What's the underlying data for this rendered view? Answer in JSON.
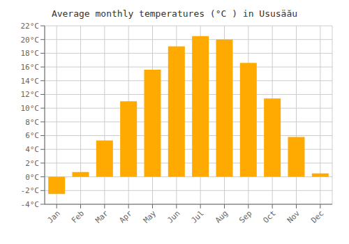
{
  "chart_data": {
    "type": "bar",
    "title": "Average monthly temperatures (°C ) in Ususäău",
    "categories": [
      "Jan",
      "Feb",
      "Mar",
      "Apr",
      "May",
      "Jun",
      "Jul",
      "Aug",
      "Sep",
      "Oct",
      "Nov",
      "Dec"
    ],
    "values": [
      -2.5,
      0.7,
      5.3,
      11.0,
      15.6,
      19.0,
      20.5,
      20.0,
      16.6,
      11.4,
      5.8,
      0.5
    ],
    "color": "#FFAA00",
    "ylim": [
      -4,
      22
    ],
    "yticks": [
      {
        "value": -4,
        "label": "-4°C"
      },
      {
        "value": -2,
        "label": "-2°C"
      },
      {
        "value": 0,
        "label": "0°C"
      },
      {
        "value": 2,
        "label": "2°C"
      },
      {
        "value": 4,
        "label": "4°C"
      },
      {
        "value": 6,
        "label": "6°C"
      },
      {
        "value": 8,
        "label": "8°C"
      },
      {
        "value": 10,
        "label": "10°C"
      },
      {
        "value": 12,
        "label": "12°C"
      },
      {
        "value": 14,
        "label": "14°C"
      },
      {
        "value": 16,
        "label": "16°C"
      },
      {
        "value": 18,
        "label": "18°C"
      },
      {
        "value": 20,
        "label": "20°C"
      },
      {
        "value": 22,
        "label": "22°C"
      }
    ],
    "grid": true
  }
}
